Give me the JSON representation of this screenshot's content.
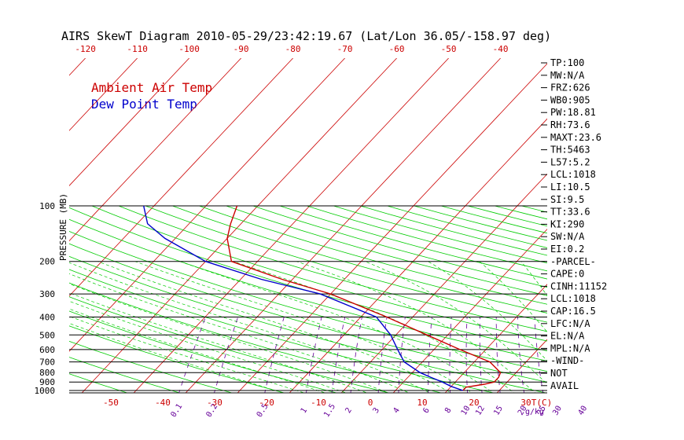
{
  "chart_data": {
    "type": "line",
    "title": "AIRS SkewT Diagram 2010-05-29/23:42:19.67 (Lat/Lon 36.05/-158.97 deg)",
    "ylabel": "PRESSURE (MB)",
    "xlabel": "T(C)",
    "mixing_ratio_label": "g/kg",
    "pressure_ticks": [
      1000,
      900,
      800,
      700,
      600,
      500,
      400,
      300,
      200,
      100
    ],
    "top_temp_ticks": [
      -120,
      -110,
      -100,
      -90,
      -80,
      -70,
      -60,
      -50,
      -40
    ],
    "bottom_temp_ticks": [
      -50,
      -40,
      -30,
      -20,
      -10,
      0,
      10,
      20,
      30
    ],
    "mixing_ratios": [
      "0.1",
      "0.2",
      "0.5",
      "1",
      "1.5",
      "2",
      "3",
      "4",
      "6",
      "8",
      "10",
      "12",
      "15",
      "20",
      "25",
      "30",
      "40"
    ],
    "series": [
      {
        "name": "Ambient Air Temp",
        "color": "#cc0000",
        "points": [
          [
            1000,
            13.0
          ],
          [
            960,
            13.0
          ],
          [
            925,
            16.0
          ],
          [
            900,
            17.5
          ],
          [
            850,
            17.5
          ],
          [
            800,
            17.0
          ],
          [
            700,
            13.0
          ],
          [
            600,
            5.0
          ],
          [
            500,
            -4.0
          ],
          [
            400,
            -15.0
          ],
          [
            300,
            -30.0
          ],
          [
            250,
            -42.0
          ],
          [
            200,
            -55.0
          ],
          [
            150,
            -60.0
          ],
          [
            125,
            -62.0
          ],
          [
            100,
            -64.0
          ]
        ]
      },
      {
        "name": "Dew Point Temp",
        "color": "#0000cc",
        "points": [
          [
            1000,
            13.0
          ],
          [
            950,
            10.0
          ],
          [
            900,
            7.5
          ],
          [
            850,
            4.5
          ],
          [
            800,
            1.5
          ],
          [
            700,
            -3.5
          ],
          [
            600,
            -7.0
          ],
          [
            500,
            -11.0
          ],
          [
            400,
            -17.0
          ],
          [
            300,
            -32.0
          ],
          [
            250,
            -46.0
          ],
          [
            200,
            -60.0
          ],
          [
            150,
            -72.0
          ],
          [
            125,
            -78.0
          ],
          [
            100,
            -82.0
          ]
        ]
      }
    ],
    "stats": [
      "TP:100",
      "MW:N/A",
      "FRZ:626",
      "WB0:905",
      "PW:18.81",
      "RH:73.6",
      "MAXT:23.6",
      "TH:5463",
      "L57:5.2",
      "LCL:1018",
      "LI:10.5",
      "SI:9.5",
      "TT:33.6",
      "KI:290",
      "SW:N/A",
      "EI:0.2",
      "-PARCEL-",
      "CAPE:0",
      "CINH:11152",
      "LCL:1018",
      "CAP:16.5",
      "LFC:N/A",
      "EL:N/A",
      "MPL:N/A",
      "-WIND-",
      "NOT",
      "AVAIL"
    ],
    "colors": {
      "isotherm": "#cc0000",
      "dry_adiabat": "#00cc00",
      "moist_adiabat": "#00cc00",
      "mixing_ratio": "#660099",
      "isobar": "#000000"
    }
  }
}
